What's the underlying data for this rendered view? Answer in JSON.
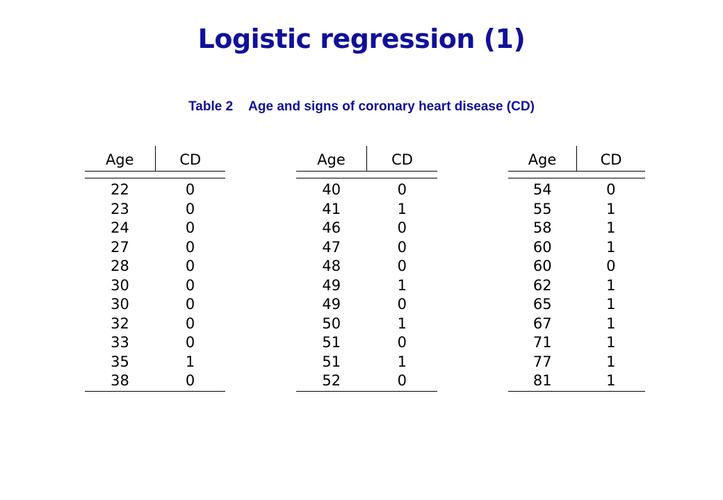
{
  "title": "Logistic regression (1)",
  "caption": {
    "number": "Table 2",
    "text": "Age and signs of coronary heart disease (CD)"
  },
  "tables": [
    {
      "headers": [
        "Age",
        "CD"
      ],
      "rows": [
        [
          "22",
          "0"
        ],
        [
          "23",
          "0"
        ],
        [
          "24",
          "0"
        ],
        [
          "27",
          "0"
        ],
        [
          "28",
          "0"
        ],
        [
          "30",
          "0"
        ],
        [
          "30",
          "0"
        ],
        [
          "32",
          "0"
        ],
        [
          "33",
          "0"
        ],
        [
          "35",
          "1"
        ],
        [
          "38",
          "0"
        ]
      ]
    },
    {
      "headers": [
        "Age",
        "CD"
      ],
      "rows": [
        [
          "40",
          "0"
        ],
        [
          "41",
          "1"
        ],
        [
          "46",
          "0"
        ],
        [
          "47",
          "0"
        ],
        [
          "48",
          "0"
        ],
        [
          "49",
          "1"
        ],
        [
          "49",
          "0"
        ],
        [
          "50",
          "1"
        ],
        [
          "51",
          "0"
        ],
        [
          "51",
          "1"
        ],
        [
          "52",
          "0"
        ]
      ]
    },
    {
      "headers": [
        "Age",
        "CD"
      ],
      "rows": [
        [
          "54",
          "0"
        ],
        [
          "55",
          "1"
        ],
        [
          "58",
          "1"
        ],
        [
          "60",
          "1"
        ],
        [
          "60",
          "0"
        ],
        [
          "62",
          "1"
        ],
        [
          "65",
          "1"
        ],
        [
          "67",
          "1"
        ],
        [
          "71",
          "1"
        ],
        [
          "77",
          "1"
        ],
        [
          "81",
          "1"
        ]
      ]
    }
  ]
}
